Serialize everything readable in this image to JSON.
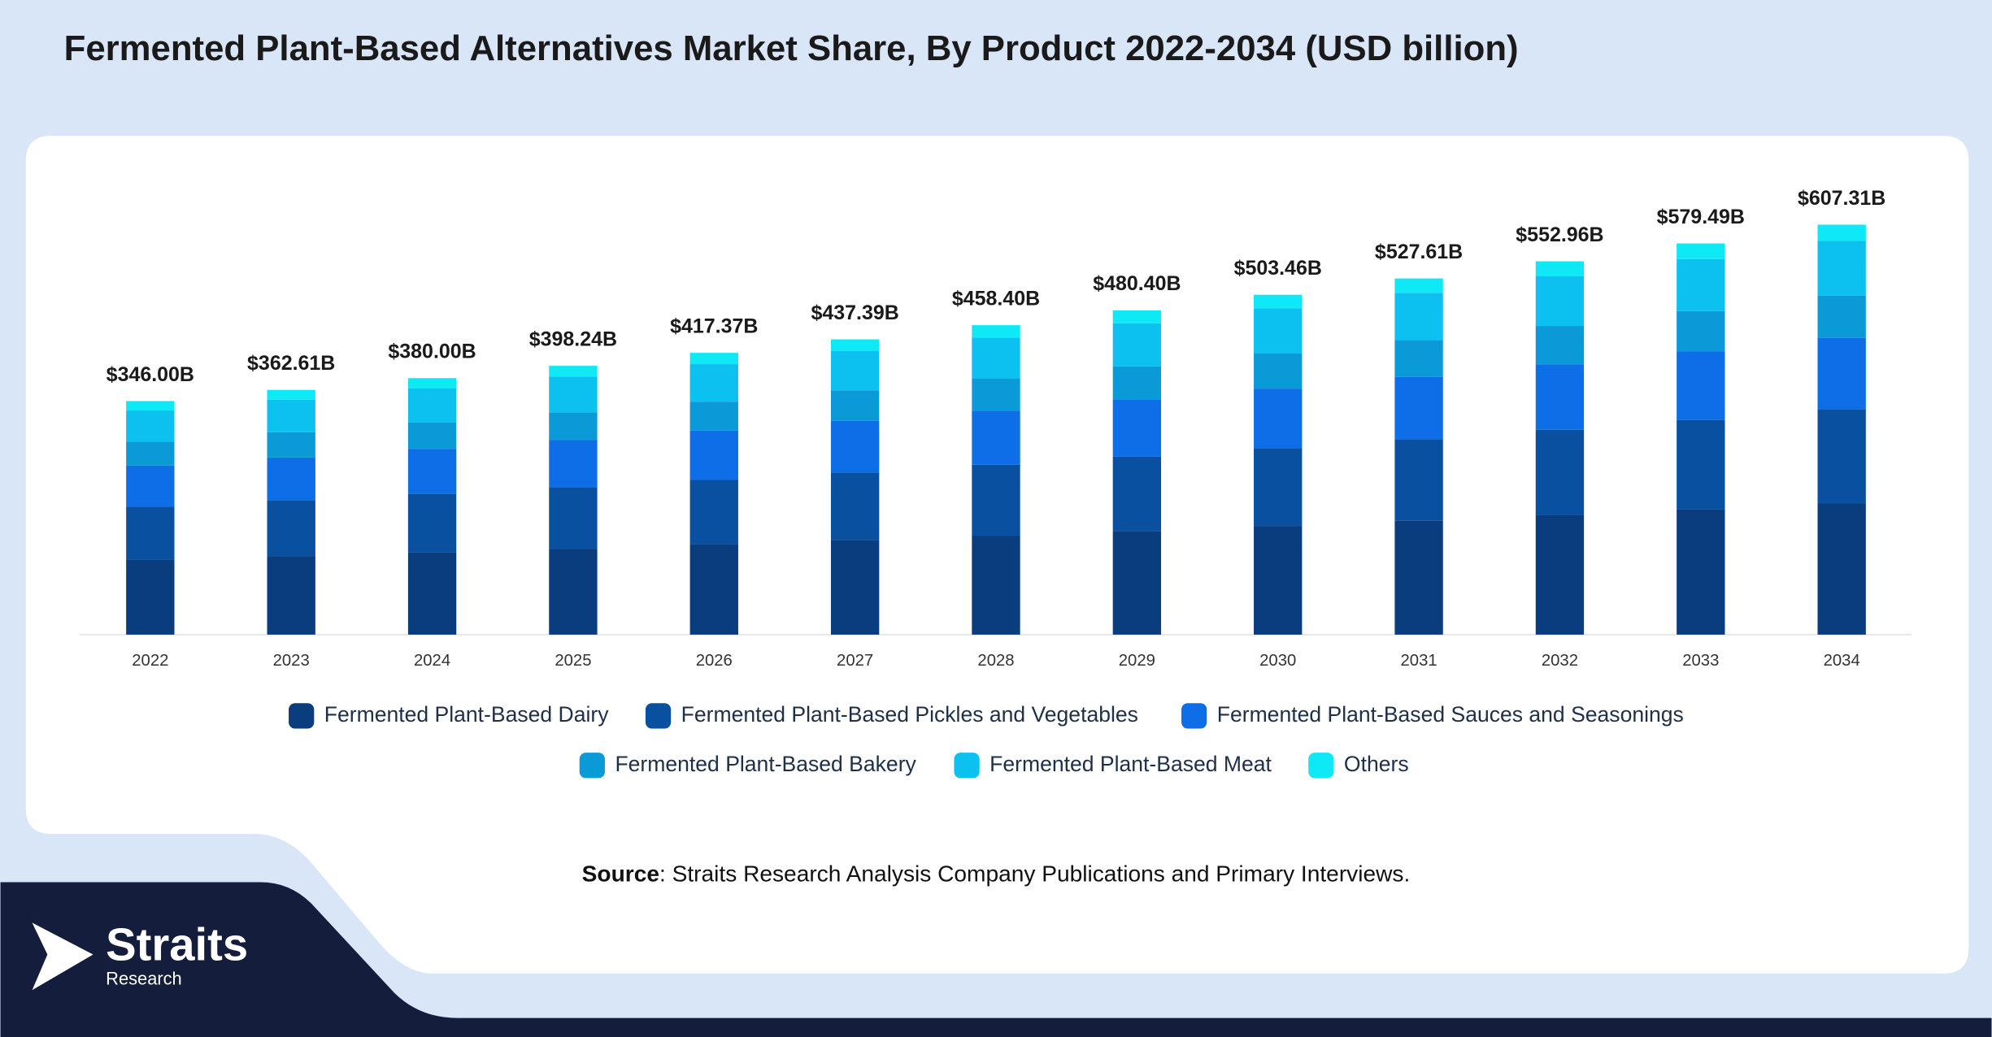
{
  "chart_data": {
    "type": "stacked_bar",
    "title": "Fermented Plant-Based Alternatives Market Share, By Product 2022-2034 (USD billion)",
    "categories": [
      "2022",
      "2023",
      "2024",
      "2025",
      "2026",
      "2027",
      "2028",
      "2029",
      "2030",
      "2031",
      "2032",
      "2033",
      "2034"
    ],
    "series": [
      {
        "name": "Fermented Plant-Based Dairy",
        "color": "#0a3d7d",
        "values": [
          110.7,
          116.0,
          121.6,
          127.4,
          133.6,
          140.0,
          146.7,
          153.7,
          161.1,
          168.8,
          176.9,
          185.4,
          194.3
        ]
      },
      {
        "name": "Fermented Plant-Based Pickles and Vegetables",
        "color": "#0a50a0",
        "values": [
          79.2,
          83.0,
          87.0,
          91.2,
          95.6,
          100.2,
          105.0,
          110.0,
          115.3,
          120.8,
          126.6,
          132.7,
          139.1
        ]
      },
      {
        "name": "Fermented Plant-Based Sauces and Seasonings",
        "color": "#0d6ee8",
        "values": [
          60.6,
          63.5,
          66.5,
          69.7,
          73.0,
          76.5,
          80.2,
          84.1,
          88.1,
          92.3,
          96.8,
          101.4,
          106.3
        ]
      },
      {
        "name": "Fermented Plant-Based Bakery",
        "color": "#0a9ad8",
        "values": [
          35.6,
          37.3,
          39.1,
          41.0,
          43.0,
          45.1,
          47.2,
          49.5,
          51.9,
          54.3,
          57.0,
          59.7,
          62.6
        ]
      },
      {
        "name": "Fermented Plant-Based Meat",
        "color": "#0cc0f0",
        "values": [
          46.0,
          48.2,
          50.5,
          53.0,
          55.5,
          58.2,
          61.0,
          63.9,
          67.0,
          70.2,
          73.5,
          77.1,
          80.8
        ]
      },
      {
        "name": "Others",
        "color": "#0fe8f5",
        "values": [
          13.9,
          14.6,
          15.3,
          15.9,
          16.7,
          17.4,
          18.3,
          19.2,
          20.1,
          21.2,
          22.2,
          23.2,
          24.2
        ]
      }
    ],
    "totals": {
      "values": [
        346.0,
        362.61,
        380.0,
        398.24,
        417.37,
        437.39,
        458.4,
        480.4,
        503.46,
        527.61,
        552.96,
        579.49,
        607.31
      ],
      "value_labels": [
        "$346.00B",
        "$362.61B",
        "$380.00B",
        "$398.24B",
        "$417.37B",
        "$437.39B",
        "$458.40B",
        "$480.40B",
        "$503.46B",
        "$527.61B",
        "$552.96B",
        "$579.49B",
        "$607.31B"
      ]
    },
    "source_label": "Source",
    "source_text": ": Straits Research Analysis Company Publications and Primary Interviews.",
    "logo": {
      "name": "Straits",
      "subtitle": "Research"
    }
  }
}
